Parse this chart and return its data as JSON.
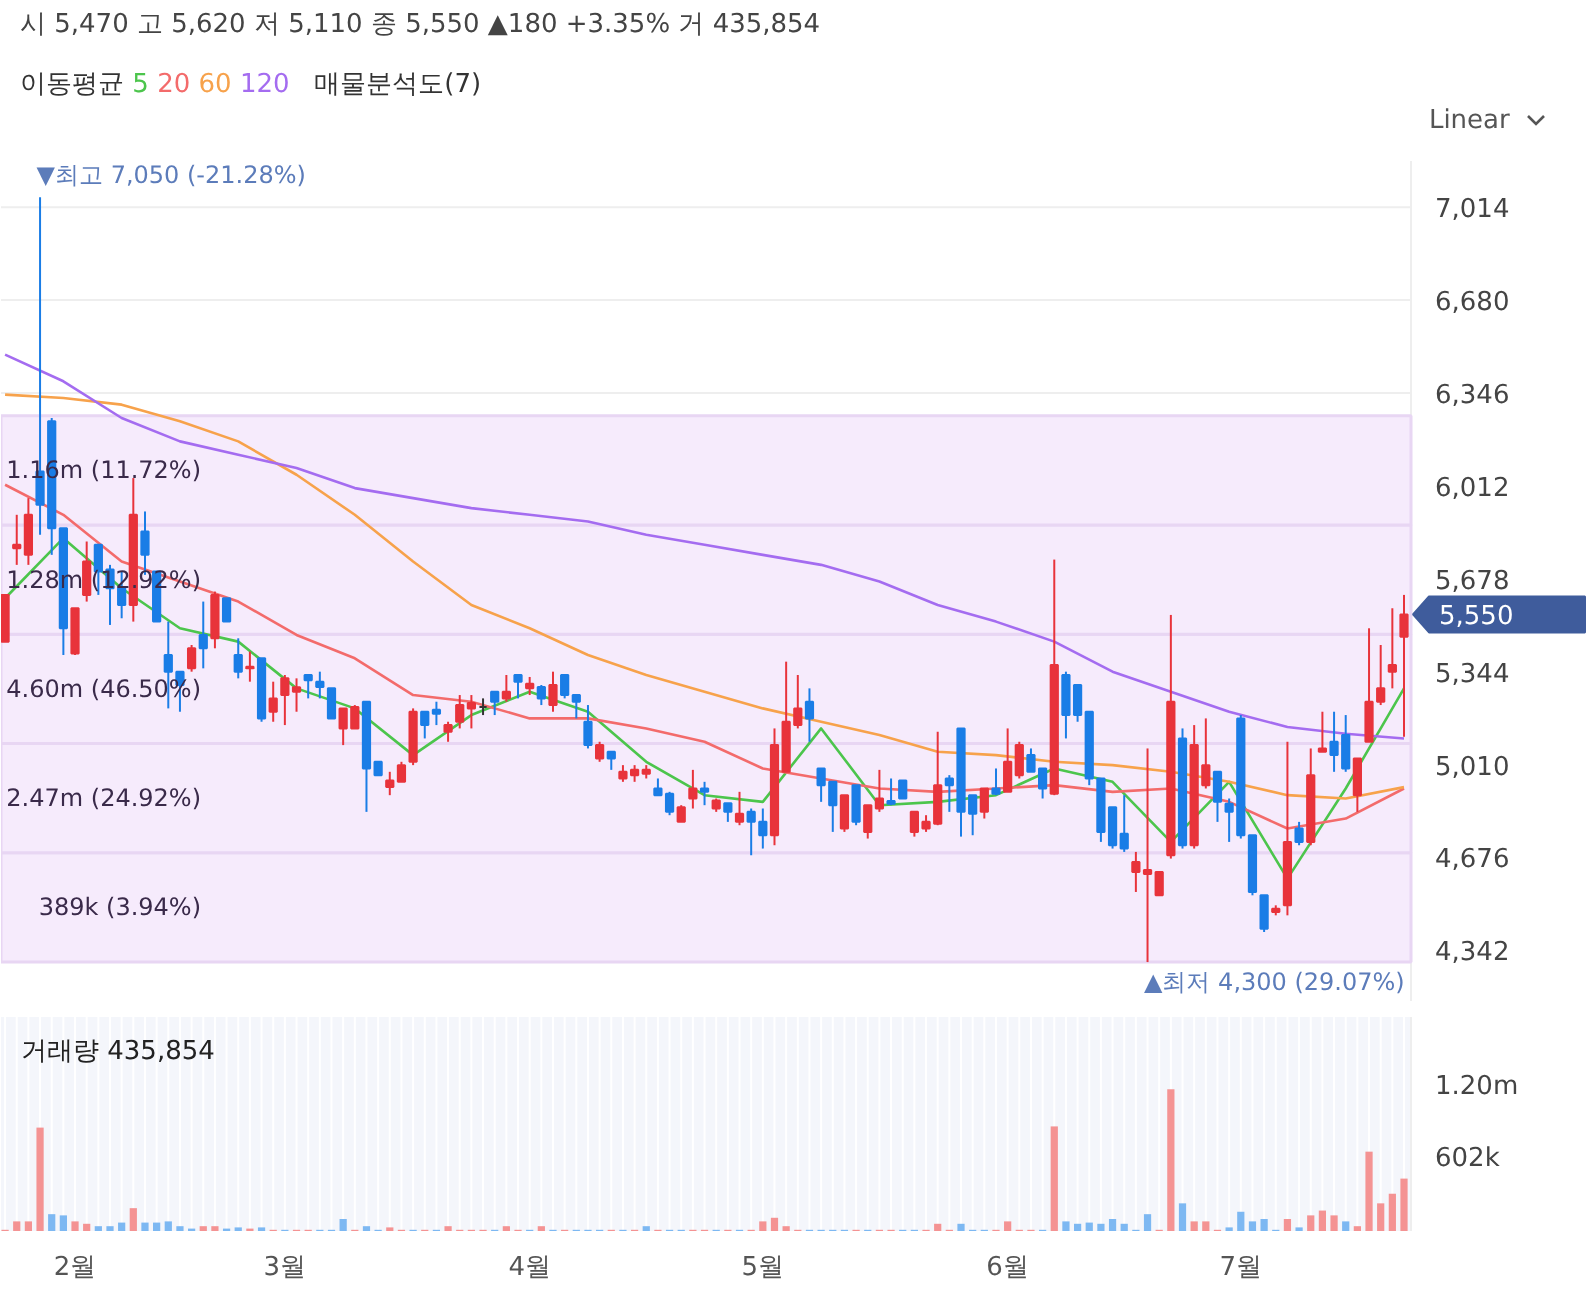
{
  "chart_data": [
    {
      "type": "candlestick",
      "subtitle": "시 5,470 고 5,620 저 5,110 종 5,550 ▲180 +3.35% 거 435,854",
      "legend_title": "이동평균",
      "legend": "top left",
      "grid": "y",
      "tick_labels": "y",
      "categories": [
        null,
        null,
        null,
        null,
        null,
        null,
        null,
        null,
        null,
        null,
        null,
        null,
        null,
        null,
        null,
        null,
        null,
        null,
        null,
        null,
        null,
        null,
        null,
        null,
        null,
        null,
        null,
        null,
        null,
        null,
        null,
        null,
        null,
        null,
        null,
        null,
        null,
        null,
        null,
        null,
        null,
        null,
        null,
        null,
        null,
        null,
        null,
        null,
        null,
        null,
        null,
        null,
        null,
        null,
        null,
        null,
        null,
        null,
        null,
        null,
        null,
        null,
        null,
        null,
        null,
        null,
        null,
        null,
        null,
        null,
        null,
        null,
        null,
        null,
        null,
        null,
        null,
        null,
        null,
        null,
        null,
        null,
        null,
        null,
        null,
        null,
        null,
        null,
        null,
        null,
        null,
        null,
        null,
        null,
        null,
        null,
        null,
        null,
        null,
        null,
        null,
        null,
        null,
        null,
        null,
        null,
        null,
        null,
        null,
        null,
        null,
        null,
        null,
        null,
        null,
        null,
        null,
        null,
        null,
        null,
        null
      ],
      "ohlc": [
        [
          5452,
          5620,
          5452,
          5620
        ],
        [
          5788,
          5908,
          5728,
          5800
        ],
        [
          5764,
          5968,
          5728,
          5908
        ],
        [
          6064,
          7050,
          5836,
          5944
        ],
        [
          6244,
          6256,
          5764,
          5860
        ],
        [
          5860,
          5860,
          5404,
          5500
        ],
        [
          5409,
          5572,
          5404,
          5572
        ],
        [
          5620,
          5812,
          5596,
          5740
        ],
        [
          5800,
          5800,
          5620,
          5704
        ],
        [
          5711,
          5728,
          5512,
          5644
        ],
        [
          5644,
          5704,
          5536,
          5584
        ],
        [
          5584,
          6040,
          5524,
          5908
        ],
        [
          5848,
          5920,
          5692,
          5764
        ],
        [
          5704,
          5704,
          5524,
          5524
        ],
        [
          5404,
          5524,
          5212,
          5344
        ],
        [
          5344,
          5344,
          5200,
          5296
        ],
        [
          5356,
          5440,
          5344,
          5428
        ],
        [
          5476,
          5596,
          5356,
          5428
        ],
        [
          5464,
          5632,
          5428,
          5620
        ],
        [
          5608,
          5608,
          5524,
          5524
        ],
        [
          5404,
          5464,
          5320,
          5344
        ],
        [
          5356,
          5416,
          5308,
          5362
        ],
        [
          5392,
          5392,
          5164,
          5176
        ],
        [
          5200,
          5308,
          5164,
          5248
        ],
        [
          5260,
          5332,
          5152,
          5320
        ],
        [
          5272,
          5320,
          5200,
          5288
        ],
        [
          5332,
          5332,
          5248,
          5313
        ],
        [
          5308,
          5344,
          5248,
          5289
        ],
        [
          5284,
          5284,
          5176,
          5176
        ],
        [
          5140,
          5212,
          5080,
          5212
        ],
        [
          5140,
          5224,
          5140,
          5217
        ],
        [
          5236,
          5236,
          4840,
          4996
        ],
        [
          5020,
          5020,
          4972,
          4972
        ],
        [
          4929,
          4984,
          4900,
          4953
        ],
        [
          4948,
          5020,
          4948,
          5008
        ],
        [
          5020,
          5212,
          5008,
          5200
        ],
        [
          5200,
          5200,
          5104,
          5152
        ],
        [
          5207,
          5236,
          5152,
          5193
        ],
        [
          5128,
          5164,
          5092,
          5152
        ],
        [
          5164,
          5260,
          5140,
          5224
        ],
        [
          5212,
          5260,
          5140,
          5231
        ],
        [
          5217,
          5248,
          5188,
          5217
        ],
        [
          5272,
          5272,
          5188,
          5236
        ],
        [
          5248,
          5332,
          5236,
          5272
        ],
        [
          5332,
          5332,
          5248,
          5308
        ],
        [
          5284,
          5325,
          5260,
          5301
        ],
        [
          5289,
          5296,
          5224,
          5248
        ],
        [
          5224,
          5344,
          5200,
          5296
        ],
        [
          5332,
          5332,
          5248,
          5260
        ],
        [
          5260,
          5260,
          5176,
          5236
        ],
        [
          5164,
          5224,
          5068,
          5080
        ],
        [
          5032,
          5092,
          5020,
          5080
        ],
        [
          5056,
          5056,
          4991,
          5032
        ],
        [
          4960,
          5008,
          4948,
          4984
        ],
        [
          4972,
          5008,
          4948,
          4991
        ],
        [
          4977,
          5008,
          4960,
          4991
        ],
        [
          4924,
          4960,
          4900,
          4900
        ],
        [
          4905,
          4912,
          4828,
          4840
        ],
        [
          4804,
          4864,
          4804,
          4857
        ],
        [
          4888,
          4991,
          4852,
          4924
        ],
        [
          4924,
          4948,
          4864,
          4912
        ],
        [
          4852,
          4888,
          4840,
          4881
        ],
        [
          4871,
          4871,
          4804,
          4840
        ],
        [
          4804,
          4912,
          4792,
          4833
        ],
        [
          4840,
          4852,
          4684,
          4804
        ],
        [
          4804,
          4852,
          4708,
          4756
        ],
        [
          4756,
          5140,
          4720,
          5080
        ],
        [
          4984,
          5380,
          4984,
          5164
        ],
        [
          5152,
          5332,
          5140,
          5212
        ],
        [
          5236,
          5284,
          5092,
          5176
        ],
        [
          4996,
          4996,
          4876,
          4936
        ],
        [
          4948,
          4948,
          4768,
          4864
        ],
        [
          4780,
          4900,
          4768,
          4900
        ],
        [
          4936,
          4936,
          4792,
          4804
        ],
        [
          4768,
          4864,
          4744,
          4864
        ],
        [
          4852,
          4991,
          4840,
          4888
        ],
        [
          4879,
          4960,
          4864,
          4869
        ],
        [
          4953,
          4953,
          4888,
          4888
        ],
        [
          4768,
          4840,
          4751,
          4840
        ],
        [
          4780,
          4828,
          4768,
          4804
        ],
        [
          4797,
          5128,
          4792,
          4936
        ],
        [
          4960,
          4972,
          4840,
          4936
        ],
        [
          5140,
          5140,
          4751,
          4840
        ],
        [
          4900,
          4900,
          4756,
          4833
        ],
        [
          4840,
          4924,
          4816,
          4924
        ],
        [
          4924,
          4996,
          4900,
          4905
        ],
        [
          4912,
          5140,
          4912,
          5020
        ],
        [
          4972,
          5092,
          4960,
          5080
        ],
        [
          5044,
          5068,
          4984,
          4984
        ],
        [
          4996,
          4996,
          4888,
          4924
        ],
        [
          4905,
          5747,
          4900,
          5368
        ],
        [
          5332,
          5344,
          5104,
          5188
        ],
        [
          5296,
          5296,
          5164,
          5188
        ],
        [
          5200,
          5200,
          4936,
          4960
        ],
        [
          4960,
          4960,
          4732,
          4768
        ],
        [
          4857,
          4857,
          4708,
          4720
        ],
        [
          4761,
          4900,
          4696,
          4708
        ],
        [
          4624,
          4696,
          4552,
          4660
        ],
        [
          4617,
          5068,
          4300,
          4631
        ],
        [
          4540,
          4624,
          4540,
          4624
        ],
        [
          4684,
          5548,
          4672,
          5236
        ],
        [
          5104,
          5140,
          4708,
          4720
        ],
        [
          4720,
          5152,
          4708,
          5080
        ],
        [
          4936,
          5176,
          4924,
          5008
        ],
        [
          4984,
          4984,
          4804,
          4876
        ],
        [
          4869,
          4888,
          4732,
          4840
        ],
        [
          5176,
          5188,
          4744,
          4756
        ],
        [
          4756,
          4756,
          4540,
          4552
        ],
        [
          4540,
          4540,
          4408,
          4420
        ],
        [
          4480,
          4504,
          4468,
          4492
        ],
        [
          4504,
          5092,
          4468,
          4732
        ],
        [
          4780,
          4804,
          4720,
          4732
        ],
        [
          4732,
          5068,
          4720,
          4972
        ],
        [
          5056,
          5200,
          5056,
          5068
        ],
        [
          5092,
          5200,
          4984,
          5044
        ],
        [
          5116,
          5188,
          4984,
          4996
        ],
        [
          4900,
          5032,
          4840,
          5032
        ],
        [
          5092,
          5500,
          5092,
          5236
        ],
        [
          5236,
          5440,
          5224,
          5284
        ],
        [
          5344,
          5572,
          5284,
          5368
        ],
        [
          5470,
          5620,
          5110,
          5550
        ]
      ],
      "colors": [
        "#e8333b",
        "#e8333b",
        "#e8333b",
        "#1a7de6",
        "#1a7de6",
        "#1a7de6",
        "#e8333b",
        "#e8333b",
        "#1a7de6",
        "#1a7de6",
        "#1a7de6",
        "#e8333b",
        "#1a7de6",
        "#1a7de6",
        "#1a7de6",
        "#1a7de6",
        "#e8333b",
        "#1a7de6",
        "#e8333b",
        "#1a7de6",
        "#1a7de6",
        "#e8333b",
        "#1a7de6",
        "#e8333b",
        "#e8333b",
        "#e8333b",
        "#1a7de6",
        "#1a7de6",
        "#1a7de6",
        "#e8333b",
        "#e8333b",
        "#1a7de6",
        "#1a7de6",
        "#e8333b",
        "#e8333b",
        "#e8333b",
        "#1a7de6",
        "#1a7de6",
        "#e8333b",
        "#e8333b",
        "#e8333b",
        "#333333",
        "#1a7de6",
        "#e8333b",
        "#1a7de6",
        "#e8333b",
        "#1a7de6",
        "#e8333b",
        "#1a7de6",
        "#1a7de6",
        "#1a7de6",
        "#e8333b",
        "#1a7de6",
        "#e8333b",
        "#e8333b",
        "#e8333b",
        "#1a7de6",
        "#1a7de6",
        "#e8333b",
        "#e8333b",
        "#1a7de6",
        "#e8333b",
        "#1a7de6",
        "#e8333b",
        "#1a7de6",
        "#1a7de6",
        "#e8333b",
        "#e8333b",
        "#e8333b",
        "#1a7de6",
        "#1a7de6",
        "#1a7de6",
        "#e8333b",
        "#1a7de6",
        "#e8333b",
        "#e8333b",
        "#1a7de6",
        "#1a7de6",
        "#e8333b",
        "#e8333b",
        "#e8333b",
        "#1a7de6",
        "#1a7de6",
        "#1a7de6",
        "#e8333b",
        "#1a7de6",
        "#e8333b",
        "#e8333b",
        "#1a7de6",
        "#1a7de6",
        "#e8333b",
        "#1a7de6",
        "#1a7de6",
        "#1a7de6",
        "#1a7de6",
        "#1a7de6",
        "#1a7de6",
        "#e8333b",
        "#e8333b",
        "#e8333b",
        "#e8333b",
        "#1a7de6",
        "#e8333b",
        "#e8333b",
        "#1a7de6",
        "#1a7de6",
        "#1a7de6",
        "#1a7de6",
        "#1a7de6",
        "#e8333b",
        "#e8333b",
        "#1a7de6",
        "#e8333b",
        "#e8333b",
        "#1a7de6",
        "#1a7de6",
        "#e8333b",
        "#e8333b",
        "#e8333b",
        "#e8333b",
        "#e8333b"
      ],
      "series": [
        {
          "name": "5",
          "type": "line",
          "color": "#4cc54c",
          "values": [
            5608,
            null,
            null,
            null,
            null,
            5824,
            null,
            null,
            null,
            null,
            5644,
            null,
            null,
            null,
            null,
            5500,
            null,
            null,
            null,
            null,
            5452,
            null,
            null,
            null,
            null,
            5284,
            null,
            null,
            null,
            null,
            5212,
            null,
            null,
            null,
            null,
            5044,
            null,
            null,
            null,
            null,
            5188,
            null,
            null,
            null,
            null,
            5272,
            null,
            null,
            null,
            null,
            5200,
            null,
            null,
            null,
            null,
            5020,
            null,
            null,
            null,
            null,
            4900,
            null,
            null,
            null,
            null,
            4876,
            null,
            null,
            null,
            null,
            5140,
            null,
            null,
            null,
            null,
            4864,
            null,
            null,
            null,
            null,
            4876,
            null,
            null,
            null,
            null,
            4900,
            null,
            null,
            null,
            null,
            4996,
            null,
            null,
            null,
            null,
            4948,
            null,
            null,
            null,
            null,
            4732,
            null,
            null,
            null,
            null,
            4948,
            null,
            null,
            null,
            null,
            4600,
            null,
            null,
            null,
            null,
            4924,
            null,
            null,
            null,
            null,
            5284
          ]
        },
        {
          "name": "20",
          "type": "line",
          "color": "#f36b6b",
          "values": [
            6016,
            null,
            null,
            null,
            null,
            5908,
            null,
            null,
            null,
            null,
            5740,
            null,
            null,
            null,
            null,
            5668,
            null,
            null,
            null,
            null,
            5596,
            null,
            null,
            null,
            null,
            5476,
            null,
            null,
            null,
            null,
            5392,
            null,
            null,
            null,
            null,
            5260,
            null,
            null,
            null,
            null,
            5236,
            null,
            null,
            null,
            null,
            5176,
            null,
            null,
            null,
            null,
            5176,
            null,
            null,
            null,
            null,
            5140,
            null,
            null,
            null,
            null,
            5092,
            null,
            null,
            null,
            null,
            4996,
            null,
            null,
            null,
            null,
            4960,
            null,
            null,
            null,
            null,
            4924,
            null,
            null,
            null,
            null,
            4912,
            null,
            null,
            null,
            null,
            4924,
            null,
            null,
            null,
            null,
            4936,
            null,
            null,
            null,
            null,
            4912,
            null,
            null,
            null,
            null,
            4924,
            null,
            null,
            null,
            null,
            4876,
            null,
            null,
            null,
            null,
            4780,
            null,
            null,
            null,
            null,
            4816,
            null,
            null,
            null,
            null,
            4924
          ]
        },
        {
          "name": "60",
          "type": "line",
          "color": "#f7a24b",
          "values": [
            6340,
            null,
            null,
            null,
            null,
            6328,
            null,
            null,
            null,
            null,
            6304,
            null,
            null,
            null,
            null,
            6244,
            null,
            null,
            null,
            null,
            6172,
            null,
            null,
            null,
            null,
            6052,
            null,
            null,
            null,
            null,
            5908,
            null,
            null,
            null,
            null,
            5740,
            null,
            null,
            null,
            null,
            5584,
            null,
            null,
            null,
            null,
            5500,
            null,
            null,
            null,
            null,
            5404,
            null,
            null,
            null,
            null,
            5332,
            null,
            null,
            null,
            null,
            5272,
            null,
            null,
            null,
            null,
            5212,
            null,
            null,
            null,
            null,
            5164,
            null,
            null,
            null,
            null,
            5116,
            null,
            null,
            null,
            null,
            5056,
            null,
            null,
            null,
            null,
            5044,
            null,
            null,
            null,
            null,
            5020,
            null,
            null,
            null,
            null,
            5008,
            null,
            null,
            null,
            null,
            4984,
            null,
            null,
            null,
            null,
            4948,
            null,
            null,
            null,
            null,
            4900,
            null,
            null,
            null,
            null,
            4888,
            null,
            null,
            null,
            null,
            4929
          ]
        },
        {
          "name": "120",
          "type": "line",
          "color": "#a46cf0",
          "values": [
            6484,
            null,
            null,
            null,
            null,
            6388,
            null,
            null,
            null,
            null,
            6256,
            null,
            null,
            null,
            null,
            6172,
            null,
            null,
            null,
            null,
            6124,
            null,
            null,
            null,
            null,
            6076,
            null,
            null,
            null,
            null,
            6004,
            null,
            null,
            null,
            null,
            5968,
            null,
            null,
            null,
            null,
            5932,
            null,
            null,
            null,
            null,
            5908,
            null,
            null,
            null,
            null,
            5884,
            null,
            null,
            null,
            null,
            5836,
            null,
            null,
            null,
            null,
            5800,
            null,
            null,
            null,
            null,
            5764,
            null,
            null,
            null,
            null,
            5728,
            null,
            null,
            null,
            null,
            5668,
            null,
            null,
            null,
            null,
            5584,
            null,
            null,
            null,
            null,
            5524,
            null,
            null,
            null,
            null,
            5452,
            null,
            null,
            null,
            null,
            5344,
            null,
            null,
            null,
            null,
            5272,
            null,
            null,
            null,
            null,
            5200,
            null,
            null,
            null,
            null,
            5145,
            null,
            null,
            null,
            null,
            5121,
            null,
            null,
            null,
            null,
            5104
          ]
        }
      ],
      "ylim": [
        4160,
        7180
      ],
      "yticks": [
        {
          "value": 4342,
          "label": "4,342"
        },
        {
          "value": 4676,
          "label": "4,676"
        },
        {
          "value": 5010,
          "label": "5,010"
        },
        {
          "value": 5344,
          "label": "5,344"
        },
        {
          "value": 5678,
          "label": "5,678"
        },
        {
          "value": 6012,
          "label": "6,012"
        },
        {
          "value": 6346,
          "label": "6,346"
        },
        {
          "value": 6680,
          "label": "6,680"
        },
        {
          "value": 7014,
          "label": "7,014"
        }
      ],
      "bands": [
        {
          "axis": "y",
          "from": 4300,
          "to": 4693,
          "label": "389k (3.94%)",
          "color": "#f6ebfc"
        },
        {
          "axis": "y",
          "from": 4693,
          "to": 5086,
          "label": "2.47m (24.92%)",
          "color": "#f6ebfc"
        },
        {
          "axis": "y",
          "from": 5086,
          "to": 5479,
          "label": "4.60m (46.50%)",
          "color": "#f6ebfc"
        },
        {
          "axis": "y",
          "from": 5479,
          "to": 5871,
          "label": "1.28m (12.92%)",
          "color": "#f6ebfc"
        },
        {
          "axis": "y",
          "from": 5871,
          "to": 6264,
          "label": "1.16m (11.72%)",
          "color": "#f6ebfc"
        }
      ],
      "annotations": [
        "Linear",
        "▼최고 7,050 (-21.28%)",
        "▲최저 4,300 (29.07%)",
        "5,550",
        "매물분석도(7)"
      ]
    },
    {
      "type": "bar",
      "title": "거래량 435,854",
      "grid": "x",
      "categories": [
        null,
        null,
        null,
        null,
        null,
        null,
        "2월",
        null,
        null,
        null,
        null,
        null,
        null,
        null,
        null,
        null,
        null,
        null,
        null,
        null,
        null,
        null,
        null,
        null,
        "3월",
        null,
        null,
        null,
        null,
        null,
        null,
        null,
        null,
        null,
        null,
        null,
        null,
        null,
        null,
        null,
        null,
        null,
        null,
        null,
        null,
        "4월",
        null,
        null,
        null,
        null,
        null,
        null,
        null,
        null,
        null,
        null,
        null,
        null,
        null,
        null,
        null,
        null,
        null,
        null,
        null,
        "5월",
        null,
        null,
        null,
        null,
        null,
        null,
        null,
        null,
        null,
        null,
        null,
        null,
        null,
        null,
        null,
        null,
        null,
        null,
        null,
        null,
        "6월",
        null,
        null,
        null,
        null,
        null,
        null,
        null,
        null,
        null,
        null,
        null,
        null,
        null,
        null,
        null,
        null,
        null,
        null,
        null,
        "7월",
        null,
        null,
        null,
        null,
        null,
        null,
        null,
        null,
        null,
        null,
        null,
        null,
        null,
        null
      ],
      "values": [
        10000,
        80000,
        80000,
        860000,
        140000,
        130000,
        80000,
        60000,
        40000,
        40000,
        70000,
        190000,
        70000,
        70000,
        80000,
        40000,
        20000,
        40000,
        40000,
        20000,
        30000,
        20000,
        30000,
        10000,
        10000,
        10000,
        10000,
        10000,
        10000,
        100000,
        10000,
        40000,
        10000,
        30000,
        10000,
        10000,
        10000,
        10000,
        40000,
        10000,
        10000,
        10000,
        10000,
        40000,
        10000,
        10000,
        40000,
        10000,
        10000,
        10000,
        10000,
        10000,
        10000,
        10000,
        10000,
        40000,
        10000,
        10000,
        10000,
        10000,
        10000,
        10000,
        10000,
        10000,
        10000,
        80000,
        110000,
        40000,
        10000,
        10000,
        10000,
        10000,
        10000,
        10000,
        10000,
        10000,
        10000,
        10000,
        10000,
        10000,
        60000,
        10000,
        60000,
        10000,
        10000,
        10000,
        80000,
        10000,
        10000,
        10000,
        870000,
        80000,
        60000,
        70000,
        60000,
        100000,
        60000,
        10000,
        140000,
        10000,
        1180000,
        230000,
        80000,
        80000,
        10000,
        30000,
        160000,
        80000,
        100000,
        10000,
        100000,
        30000,
        130000,
        170000,
        130000,
        80000,
        40000,
        660000,
        230000,
        310000,
        435854
      ],
      "colors": [
        "#f49393",
        "#f49393",
        "#f49393",
        "#f49393",
        "#7db8f2",
        "#7db8f2",
        "#f49393",
        "#f49393",
        "#7db8f2",
        "#7db8f2",
        "#7db8f2",
        "#f49393",
        "#7db8f2",
        "#7db8f2",
        "#7db8f2",
        "#7db8f2",
        "#7db8f2",
        "#f49393",
        "#f49393",
        "#7db8f2",
        "#7db8f2",
        "#f49393",
        "#7db8f2",
        "#f49393",
        "#7db8f2",
        "#f49393",
        "#f49393",
        "#7db8f2",
        "#7db8f2",
        "#7db8f2",
        "#f49393",
        "#7db8f2",
        "#7db8f2",
        "#f49393",
        "#f49393",
        "#7db8f2",
        "#f49393",
        "#7db8f2",
        "#f49393",
        "#f49393",
        "#f49393",
        "#f49393",
        "#7db8f2",
        "#f49393",
        "#f49393",
        "#7db8f2",
        "#f49393",
        "#7db8f2",
        "#f49393",
        "#7db8f2",
        "#7db8f2",
        "#7db8f2",
        "#f49393",
        "#7db8f2",
        "#f49393",
        "#7db8f2",
        "#f49393",
        "#7db8f2",
        "#7db8f2",
        "#f49393",
        "#f49393",
        "#7db8f2",
        "#f49393",
        "#7db8f2",
        "#f49393",
        "#f49393",
        "#f49393",
        "#f49393",
        "#f49393",
        "#7db8f2",
        "#7db8f2",
        "#7db8f2",
        "#7db8f2",
        "#f49393",
        "#7db8f2",
        "#f49393",
        "#f49393",
        "#7db8f2",
        "#7db8f2",
        "#f49393",
        "#f49393",
        "#f49393",
        "#7db8f2",
        "#7db8f2",
        "#7db8f2",
        "#f49393",
        "#f49393",
        "#f49393",
        "#f49393",
        "#7db8f2",
        "#f49393",
        "#7db8f2",
        "#7db8f2",
        "#7db8f2",
        "#7db8f2",
        "#7db8f2",
        "#7db8f2",
        "#7db8f2",
        "#7db8f2",
        "#f49393",
        "#f49393",
        "#7db8f2",
        "#f49393",
        "#f49393",
        "#f49393",
        "#7db8f2",
        "#7db8f2",
        "#7db8f2",
        "#7db8f2",
        "#7db8f2",
        "#f49393",
        "#7db8f2",
        "#f49393",
        "#f49393",
        "#f49393",
        "#7db8f2",
        "#f49393",
        "#f49393",
        "#f49393",
        "#f49393",
        "#f49393"
      ],
      "ylim": [
        0,
        1780000
      ],
      "yticks": [
        {
          "value": 602000,
          "label": "602k"
        },
        {
          "value": 1200000,
          "label": "1.20m"
        }
      ]
    }
  ]
}
